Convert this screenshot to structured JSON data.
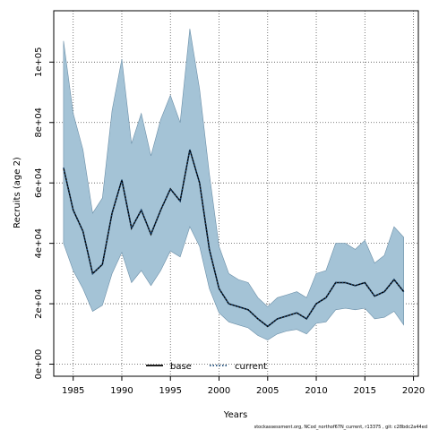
{
  "chart_data": {
    "type": "area",
    "xlabel": "Years",
    "ylabel": "Recruits (age 2)",
    "xlim": [
      1983,
      2020.5
    ],
    "ylim": [
      -4000,
      117000
    ],
    "xticks": [
      1985,
      1990,
      1995,
      2000,
      2005,
      2010,
      2015,
      2020
    ],
    "xtick_labels": [
      "1985",
      "1990",
      "1995",
      "2000",
      "2005",
      "2010",
      "2015",
      "2020"
    ],
    "yticks": [
      0,
      20000,
      40000,
      60000,
      80000,
      100000
    ],
    "ytick_labels": [
      "0e+00",
      "2e+04",
      "4e+04",
      "6e+04",
      "8e+04",
      "1e+05"
    ],
    "grid": true,
    "legend_position": "bottom-center",
    "legend": [
      {
        "name": "base",
        "style": "solid",
        "color": "#000000"
      },
      {
        "name": "current",
        "style": "dotted",
        "color": "#1a4a7a"
      }
    ],
    "band_color": "#a4c3d6",
    "x": [
      1984,
      1985,
      1986,
      1987,
      1988,
      1989,
      1990,
      1991,
      1992,
      1993,
      1994,
      1995,
      1996,
      1997,
      1998,
      1999,
      2000,
      2001,
      2002,
      2003,
      2004,
      2005,
      2006,
      2007,
      2008,
      2009,
      2010,
      2011,
      2012,
      2013,
      2014,
      2015,
      2016,
      2017,
      2018,
      2019
    ],
    "series": [
      {
        "name": "base",
        "values": [
          65000,
          51000,
          44000,
          30000,
          33000,
          50000,
          61000,
          45000,
          51000,
          43000,
          51000,
          58000,
          54000,
          71000,
          60000,
          38000,
          25000,
          20000,
          19000,
          18000,
          15000,
          12500,
          15000,
          16000,
          17000,
          15000,
          20000,
          22000,
          27000,
          27000,
          26000,
          27000,
          22500,
          24000,
          28000,
          24000
        ]
      },
      {
        "name": "current",
        "values": [
          65000,
          51000,
          44000,
          30000,
          33000,
          50000,
          61000,
          45000,
          51000,
          43000,
          51000,
          58000,
          54000,
          71000,
          60000,
          38000,
          25000,
          20000,
          19000,
          18000,
          15000,
          12500,
          15000,
          16000,
          17000,
          15000,
          20000,
          22000,
          27000,
          27000,
          26000,
          27000,
          22500,
          24000,
          28000,
          24000
        ]
      }
    ],
    "band_upper": [
      107000,
      83000,
      71000,
      50000,
      55000,
      84000,
      101000,
      73000,
      83000,
      69000,
      81000,
      89000,
      80000,
      111000,
      91000,
      63000,
      39000,
      30000,
      28000,
      27000,
      22000,
      19000,
      22000,
      23000,
      24000,
      22000,
      30000,
      31000,
      40000,
      40000,
      38000,
      41000,
      33500,
      36000,
      45500,
      42000
    ],
    "band_lower": [
      40000,
      31000,
      25000,
      17500,
      19500,
      30000,
      37000,
      27000,
      31000,
      26000,
      31000,
      37500,
      35500,
      45500,
      39000,
      25000,
      17000,
      14000,
      13000,
      12000,
      9500,
      8000,
      10000,
      11000,
      11500,
      10000,
      13500,
      14000,
      18000,
      18500,
      18000,
      18500,
      15000,
      15500,
      17500,
      13000
    ]
  },
  "footer": "stockassessment.org, NCod_northof67N_current, r13375 , git: c28bdc2a44ed"
}
